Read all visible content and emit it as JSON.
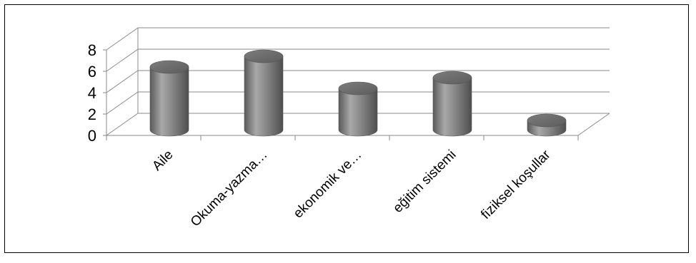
{
  "chart_data": {
    "type": "bar",
    "style": "3d-cylinder",
    "categories": [
      "Aile",
      "Okuma-yazma…",
      "ekonomik ve…",
      "eğitim sistemi",
      "fiziksel koşullar"
    ],
    "values": [
      6,
      7,
      4,
      5,
      1
    ],
    "ylim": [
      0,
      8
    ],
    "yticks": [
      "0",
      "2",
      "4",
      "6",
      "8"
    ],
    "grid": true,
    "legend": "none",
    "bar_color": "#8c8c8c"
  }
}
